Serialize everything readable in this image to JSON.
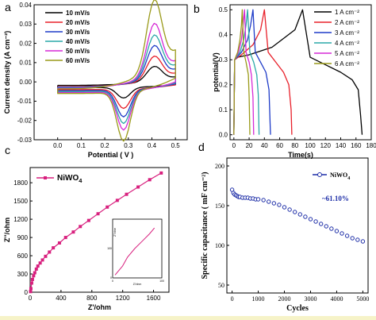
{
  "chart_data": [
    {
      "panel": "a",
      "type": "line",
      "xlabel": "Potential ( V )",
      "ylabel": "Current density (A cm⁻²)",
      "xlim": [
        -0.1,
        0.55
      ],
      "ylim": [
        -0.03,
        0.04
      ],
      "xticks": [
        0.0,
        0.1,
        0.2,
        0.3,
        0.4,
        0.5
      ],
      "yticks": [
        -0.03,
        -0.02,
        -0.01,
        0.0,
        0.01,
        0.02,
        0.03,
        0.04
      ],
      "legend_position": "top-left",
      "cv_shape": {
        "x_min": 0.0,
        "x_max": 0.5,
        "anodic_peak_x": 0.41,
        "cathodic_peak_x": 0.28
      },
      "series": [
        {
          "name": "10 mV/s",
          "color": "#000000",
          "anodic_peak": 0.0075,
          "cathodic_peak": -0.0055,
          "upper_end": 0.006,
          "lower_start": -0.003
        },
        {
          "name": "20 mV/s",
          "color": "#e8202a",
          "anodic_peak": 0.012,
          "cathodic_peak": -0.01,
          "upper_end": 0.01,
          "lower_start": -0.004
        },
        {
          "name": "30 mV/s",
          "color": "#1f3cc8",
          "anodic_peak": 0.0165,
          "cathodic_peak": -0.014,
          "upper_end": 0.014,
          "lower_start": -0.0045
        },
        {
          "name": "40 mV/s",
          "color": "#2aa8a8",
          "anodic_peak": 0.021,
          "cathodic_peak": -0.017,
          "upper_end": 0.018,
          "lower_start": -0.005
        },
        {
          "name": "50 mV/s",
          "color": "#d62ad6",
          "anodic_peak": 0.026,
          "cathodic_peak": -0.02,
          "upper_end": 0.022,
          "lower_start": -0.0055
        },
        {
          "name": "60 mV/s",
          "color": "#9a9a1a",
          "anodic_peak": 0.0355,
          "cathodic_peak": -0.0255,
          "upper_end": 0.032,
          "lower_start": -0.006
        }
      ]
    },
    {
      "panel": "b",
      "type": "line",
      "xlabel": "Time(s)",
      "ylabel": "potential(V)",
      "xlim": [
        -5,
        180
      ],
      "ylim": [
        -0.02,
        0.52
      ],
      "xticks": [
        0,
        20,
        40,
        60,
        80,
        100,
        120,
        140,
        160,
        180
      ],
      "yticks": [
        0.0,
        0.1,
        0.2,
        0.3,
        0.4,
        0.5
      ],
      "legend_position": "top-right",
      "series": [
        {
          "name": "1 A cm⁻²",
          "color": "#000000",
          "x": [
            0,
            1,
            5,
            20,
            50,
            80,
            90,
            100,
            120,
            140,
            155,
            163,
            166,
            168
          ],
          "y": [
            0,
            0.3,
            0.31,
            0.32,
            0.35,
            0.42,
            0.5,
            0.31,
            0.28,
            0.25,
            0.22,
            0.18,
            0.08,
            0
          ]
        },
        {
          "name": "2 A cm⁻²",
          "color": "#e8202a",
          "x": [
            0,
            1,
            10,
            25,
            35,
            40,
            45,
            55,
            65,
            72,
            75,
            76
          ],
          "y": [
            0,
            0.3,
            0.32,
            0.36,
            0.42,
            0.5,
            0.33,
            0.29,
            0.25,
            0.2,
            0.1,
            0
          ]
        },
        {
          "name": "3 A cm⁻²",
          "color": "#1f3cc8",
          "x": [
            0,
            1,
            10,
            18,
            22,
            25,
            28,
            35,
            42,
            46,
            48
          ],
          "y": [
            0,
            0.3,
            0.33,
            0.38,
            0.44,
            0.5,
            0.33,
            0.29,
            0.25,
            0.18,
            0
          ]
        },
        {
          "name": "4 A cm⁻²",
          "color": "#2aa8a8",
          "x": [
            0,
            1,
            8,
            13,
            16,
            18,
            21,
            26,
            30,
            32,
            33
          ],
          "y": [
            0,
            0.3,
            0.33,
            0.38,
            0.44,
            0.5,
            0.33,
            0.29,
            0.24,
            0.16,
            0
          ]
        },
        {
          "name": "5 A cm⁻²",
          "color": "#d62ad6",
          "x": [
            0,
            1,
            6,
            10,
            12,
            14,
            16,
            20,
            23,
            25,
            26
          ],
          "y": [
            0,
            0.3,
            0.33,
            0.38,
            0.44,
            0.5,
            0.33,
            0.29,
            0.24,
            0.15,
            0
          ]
        },
        {
          "name": "6 A cm⁻²",
          "color": "#9a9a1a",
          "x": [
            0,
            1,
            5,
            8,
            10,
            11,
            13,
            16,
            19,
            20,
            21
          ],
          "y": [
            0,
            0.3,
            0.33,
            0.38,
            0.44,
            0.5,
            0.33,
            0.29,
            0.24,
            0.15,
            0
          ]
        }
      ]
    },
    {
      "panel": "c",
      "type": "line",
      "xlabel": "Z'/ohm",
      "ylabel": "Z''/ohm",
      "xlim": [
        0,
        1800
      ],
      "ylim": [
        0,
        2050
      ],
      "xticks": [
        0,
        400,
        800,
        1200,
        1600
      ],
      "yticks": [
        0,
        300,
        600,
        900,
        1200,
        1500,
        1800
      ],
      "legend_position": "top-left",
      "series": [
        {
          "name": "NiWO",
          "name_subscript": "4",
          "color": "#d8207e",
          "x": [
            5,
            10,
            20,
            30,
            45,
            60,
            80,
            100,
            130,
            160,
            200,
            250,
            300,
            380,
            460,
            560,
            650,
            760,
            880,
            1000,
            1130,
            1250,
            1400,
            1550,
            1700
          ],
          "y": [
            10,
            60,
            150,
            210,
            270,
            320,
            380,
            430,
            480,
            530,
            590,
            660,
            730,
            810,
            900,
            990,
            1080,
            1180,
            1290,
            1400,
            1510,
            1610,
            1730,
            1850,
            1960
          ]
        }
      ],
      "inset": {
        "xlabel": "Z'/ohm",
        "ylabel": "Z''/ohm",
        "xticks": [
          0,
          100
        ],
        "yticks": [
          0,
          100
        ],
        "x": [
          5,
          10,
          20,
          30,
          45,
          60,
          75,
          85
        ],
        "y": [
          10,
          20,
          40,
          70,
          100,
          125,
          150,
          170
        ]
      }
    },
    {
      "panel": "d",
      "type": "scatter",
      "xlabel": "Cycles",
      "ylabel": "Specific capacitance ( mF cm⁻²)",
      "xlim": [
        -200,
        5200
      ],
      "ylim": [
        40,
        210
      ],
      "xticks": [
        0,
        1000,
        2000,
        3000,
        4000,
        5000
      ],
      "yticks": [
        50,
        100,
        150,
        200
      ],
      "legend_position": "top-right",
      "annotation": "~61.10%",
      "series": [
        {
          "name": "NiWO",
          "name_subscript": "4",
          "color": "#1f2fa8",
          "marker": "circle-open",
          "x": [
            0,
            50,
            100,
            150,
            200,
            250,
            300,
            400,
            500,
            600,
            700,
            800,
            900,
            1000,
            1200,
            1400,
            1600,
            1800,
            2000,
            2200,
            2400,
            2600,
            2800,
            3000,
            3200,
            3400,
            3600,
            3800,
            4000,
            4200,
            4400,
            4600,
            4800,
            5000
          ],
          "y": [
            170,
            166,
            164,
            163,
            162,
            161,
            161,
            160,
            160,
            160,
            159,
            159,
            158,
            158,
            157,
            155,
            153,
            151,
            148,
            145,
            142,
            139,
            136,
            133,
            130,
            127,
            124,
            121,
            118,
            115,
            112,
            109,
            107,
            105
          ]
        }
      ]
    }
  ],
  "panel_labels": {
    "a": "a",
    "b": "b",
    "c": "c",
    "d": "d"
  },
  "colors": {
    "strip": "#f6f3c8"
  }
}
